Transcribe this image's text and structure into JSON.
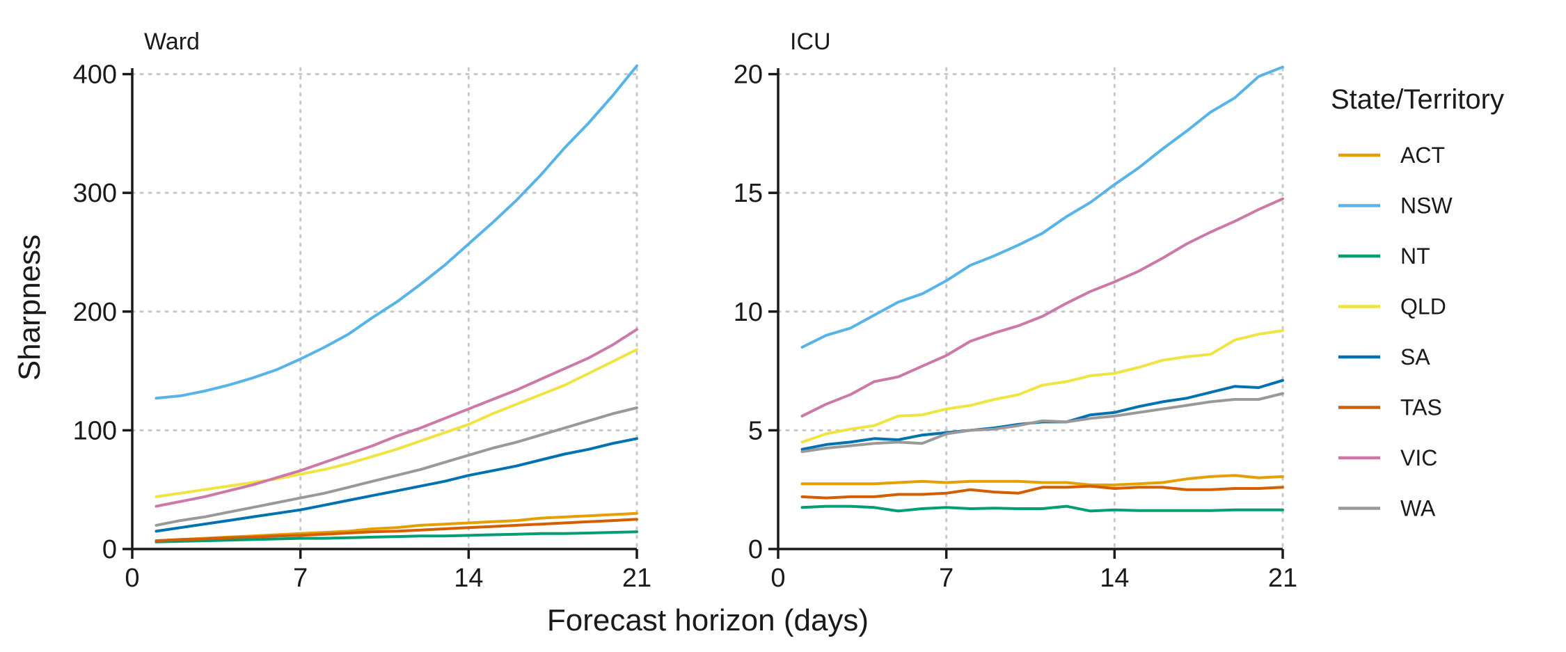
{
  "chart_data": {
    "type": "line",
    "xlabel": "Forecast horizon (days)",
    "ylabel": "Sharpness",
    "legend": {
      "title": "State/Territory",
      "position": "right"
    },
    "grid": true,
    "colors": {
      "ACT": "#E69F00",
      "NSW": "#56B4E9",
      "NT": "#009E73",
      "QLD": "#F0E442",
      "SA": "#0072B2",
      "TAS": "#D55E00",
      "VIC": "#CC79A7",
      "WA": "#999999"
    },
    "series_order": [
      "ACT",
      "NSW",
      "NT",
      "QLD",
      "SA",
      "TAS",
      "VIC",
      "WA"
    ],
    "panels": [
      {
        "title": "Ward",
        "xlim": [
          0,
          21
        ],
        "ylim": [
          0,
          405
        ],
        "xticks": [
          0,
          7,
          14,
          21
        ],
        "yticks": [
          0,
          100,
          200,
          300,
          400
        ],
        "x": [
          1,
          2,
          3,
          4,
          5,
          6,
          7,
          8,
          9,
          10,
          11,
          12,
          13,
          14,
          15,
          16,
          17,
          18,
          19,
          20,
          21
        ],
        "series": [
          {
            "name": "ACT",
            "values": [
              7,
              8,
              9,
              10,
              11,
              12,
              13,
              14,
              15,
              17,
              18,
              20,
              21,
              22,
              23,
              24,
              26,
              27,
              28,
              29,
              30
            ]
          },
          {
            "name": "NSW",
            "values": [
              127,
              129,
              133,
              138,
              144,
              151,
              160,
              170,
              181,
              195,
              208,
              223,
              239,
              257,
              275,
              294,
              315,
              338,
              359,
              382,
              407
            ]
          },
          {
            "name": "NT",
            "values": [
              6,
              6.5,
              7,
              7.5,
              8,
              8.5,
              9,
              9,
              9.5,
              10,
              10.5,
              11,
              11,
              11.5,
              12,
              12.5,
              13,
              13,
              13.5,
              14,
              14.5
            ]
          },
          {
            "name": "QLD",
            "values": [
              44,
              47,
              50,
              53,
              56,
              59,
              63,
              67,
              72,
              78,
              84,
              91,
              98,
              105,
              114,
              122,
              130,
              138,
              148,
              158,
              168
            ]
          },
          {
            "name": "SA",
            "values": [
              15,
              18,
              21,
              24,
              27,
              30,
              33,
              37,
              41,
              45,
              49,
              53,
              57,
              62,
              66,
              70,
              75,
              80,
              84,
              89,
              93
            ]
          },
          {
            "name": "TAS",
            "values": [
              7,
              8,
              8.5,
              9.5,
              10,
              11,
              11.5,
              12.5,
              13.5,
              14.5,
              15,
              16,
              17,
              18,
              19,
              20,
              21,
              22,
              23,
              24,
              25
            ]
          },
          {
            "name": "VIC",
            "values": [
              36,
              40,
              44,
              49,
              54,
              60,
              66,
              73,
              80,
              87,
              95,
              102,
              110,
              118,
              126,
              134,
              143,
              152,
              161,
              172,
              185
            ]
          },
          {
            "name": "WA",
            "values": [
              20,
              24,
              27,
              31,
              35,
              39,
              43,
              47,
              52,
              57,
              62,
              67,
              73,
              79,
              85,
              90,
              96,
              102,
              108,
              114,
              119
            ]
          }
        ]
      },
      {
        "title": "ICU",
        "xlim": [
          0,
          21
        ],
        "ylim": [
          0,
          20.25
        ],
        "xticks": [
          0,
          7,
          14,
          21
        ],
        "yticks": [
          0,
          5,
          10,
          15,
          20
        ],
        "x": [
          1,
          2,
          3,
          4,
          5,
          6,
          7,
          8,
          9,
          10,
          11,
          12,
          13,
          14,
          15,
          16,
          17,
          18,
          19,
          20,
          21
        ],
        "series": [
          {
            "name": "ACT",
            "values": [
              2.75,
              2.75,
              2.75,
              2.75,
              2.8,
              2.85,
              2.8,
              2.85,
              2.85,
              2.85,
              2.8,
              2.8,
              2.7,
              2.7,
              2.75,
              2.8,
              2.95,
              3.05,
              3.1,
              3.0,
              3.05
            ]
          },
          {
            "name": "NSW",
            "values": [
              8.5,
              9.0,
              9.3,
              9.85,
              10.4,
              10.75,
              11.3,
              11.95,
              12.35,
              12.8,
              13.3,
              14.0,
              14.6,
              15.35,
              16.05,
              16.85,
              17.6,
              18.4,
              19.0,
              19.9,
              20.3
            ]
          },
          {
            "name": "NT",
            "values": [
              1.75,
              1.8,
              1.8,
              1.75,
              1.6,
              1.7,
              1.75,
              1.7,
              1.72,
              1.7,
              1.7,
              1.8,
              1.6,
              1.65,
              1.62,
              1.62,
              1.62,
              1.62,
              1.65,
              1.65,
              1.65
            ]
          },
          {
            "name": "QLD",
            "values": [
              4.5,
              4.85,
              5.05,
              5.2,
              5.6,
              5.65,
              5.9,
              6.05,
              6.3,
              6.5,
              6.9,
              7.05,
              7.3,
              7.4,
              7.65,
              7.95,
              8.1,
              8.2,
              8.8,
              9.05,
              9.2
            ]
          },
          {
            "name": "SA",
            "values": [
              4.2,
              4.4,
              4.5,
              4.65,
              4.6,
              4.8,
              4.9,
              5.0,
              5.1,
              5.25,
              5.35,
              5.35,
              5.65,
              5.75,
              6.0,
              6.2,
              6.35,
              6.6,
              6.85,
              6.8,
              7.1
            ]
          },
          {
            "name": "TAS",
            "values": [
              2.2,
              2.15,
              2.2,
              2.2,
              2.3,
              2.3,
              2.35,
              2.5,
              2.4,
              2.35,
              2.6,
              2.6,
              2.65,
              2.55,
              2.6,
              2.6,
              2.5,
              2.5,
              2.55,
              2.55,
              2.6
            ]
          },
          {
            "name": "VIC",
            "values": [
              5.6,
              6.1,
              6.5,
              7.05,
              7.25,
              7.7,
              8.15,
              8.75,
              9.1,
              9.4,
              9.8,
              10.35,
              10.85,
              11.25,
              11.7,
              12.25,
              12.85,
              13.35,
              13.8,
              14.3,
              14.75
            ]
          },
          {
            "name": "WA",
            "values": [
              4.1,
              4.25,
              4.35,
              4.45,
              4.5,
              4.45,
              4.85,
              5.0,
              5.05,
              5.2,
              5.4,
              5.35,
              5.5,
              5.6,
              5.75,
              5.9,
              6.05,
              6.2,
              6.3,
              6.3,
              6.55
            ]
          }
        ]
      }
    ]
  }
}
